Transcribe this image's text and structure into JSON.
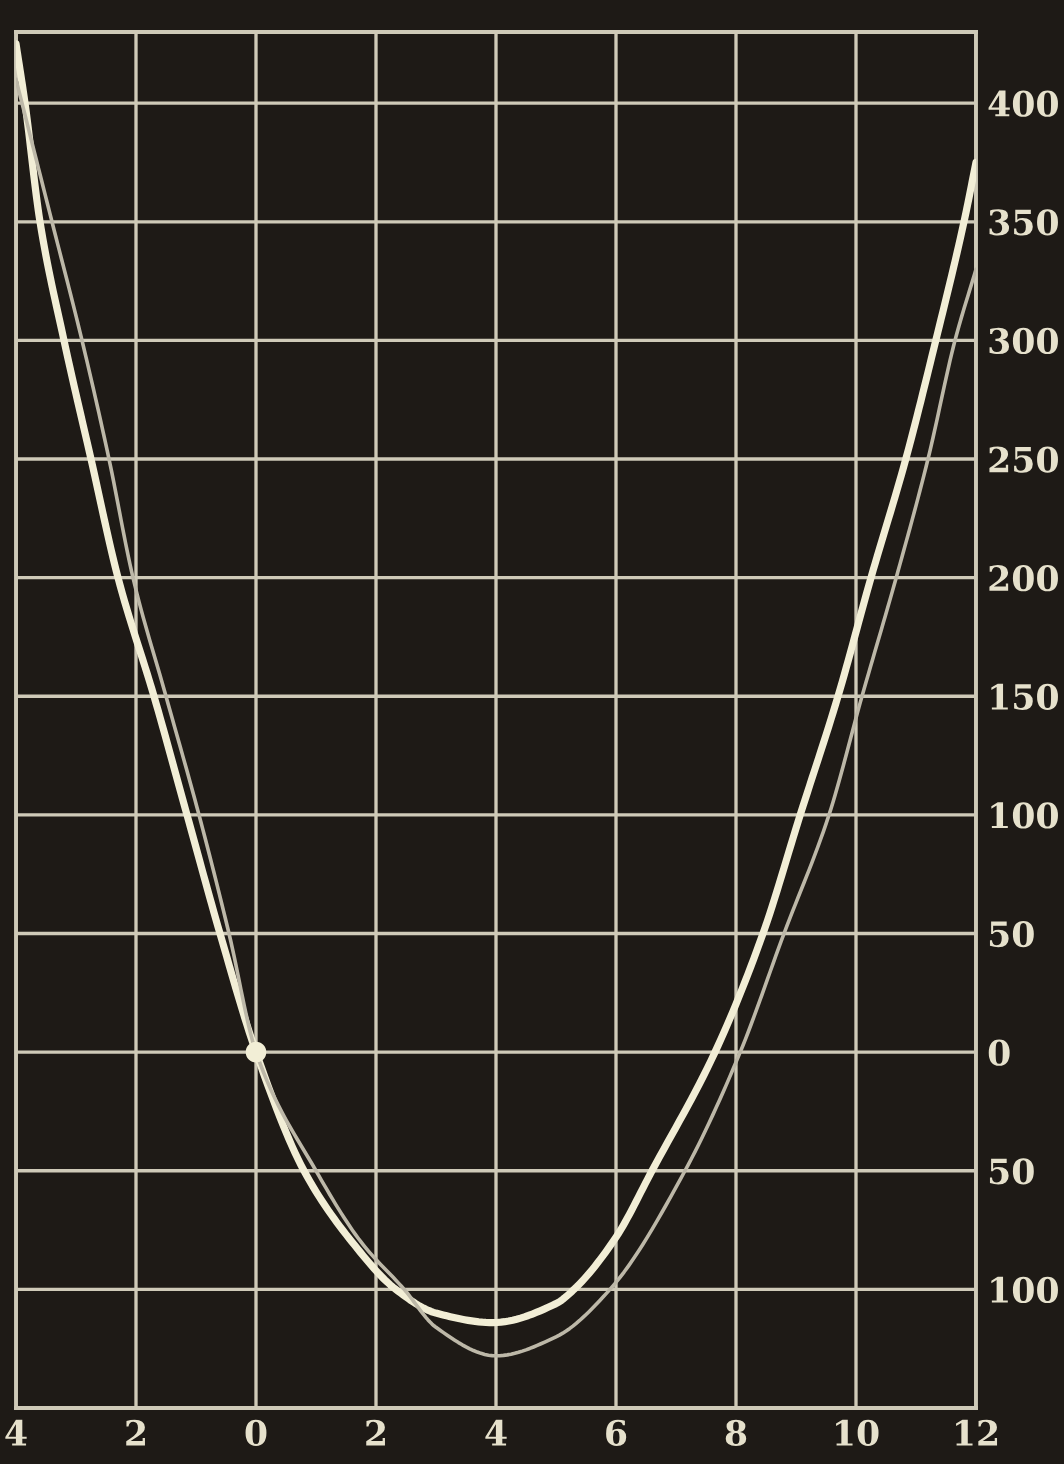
{
  "chart_data": {
    "type": "line",
    "series": [
      {
        "color": "#f2eed6",
        "x": [
          -4,
          -3.85,
          -3.6,
          -3.2,
          -2.75,
          -2.3,
          -1.7,
          -1.15,
          -0.6,
          0,
          0.8,
          1.6,
          2.33,
          3,
          3.95,
          5,
          5.3,
          6,
          6.6,
          7.65,
          8.45,
          9.07,
          9.7,
          10.25,
          10.83,
          11.33,
          11.8,
          12
        ],
        "values": [
          425,
          400,
          350,
          300,
          250,
          200,
          150,
          100,
          50,
          0,
          -50,
          -80,
          -100,
          -110,
          -114,
          -106,
          -100,
          -78,
          -50,
          0,
          50,
          100,
          150,
          200,
          250,
          300,
          350,
          375
        ]
      },
      {
        "color": "#bdb8a8",
        "x": [
          -4,
          -3.4,
          -2.9,
          -2.45,
          -2.05,
          -1.5,
          -0.95,
          -0.45,
          0,
          1,
          1.75,
          2.47,
          3,
          4,
          5,
          5.9,
          7.15,
          8.07,
          8.8,
          9.55,
          10.1,
          10.67,
          11.2,
          11.65,
          12
        ],
        "values": [
          410,
          350,
          300,
          250,
          200,
          150,
          100,
          50,
          0,
          -50,
          -80,
          -100,
          -116,
          -128,
          -120,
          -100,
          -50,
          0,
          50,
          100,
          150,
          200,
          250,
          300,
          330
        ]
      },
      {
        "type": "scatter",
        "marker": "circle",
        "color": "#f2eed6",
        "x": [
          0
        ],
        "values": [
          0
        ]
      }
    ],
    "xlim": [
      -4,
      12
    ],
    "xticks": [
      {
        "value": -4,
        "label": "4"
      },
      {
        "value": -2,
        "label": "2"
      },
      0,
      2,
      4,
      6,
      8,
      10,
      12
    ],
    "ylim": [
      -150,
      430
    ],
    "yticks": [
      {
        "value": -100,
        "label": "100"
      },
      {
        "value": -50,
        "label": "50"
      },
      0,
      50,
      100,
      150,
      200,
      250,
      300,
      350,
      400
    ],
    "grid": true
  }
}
